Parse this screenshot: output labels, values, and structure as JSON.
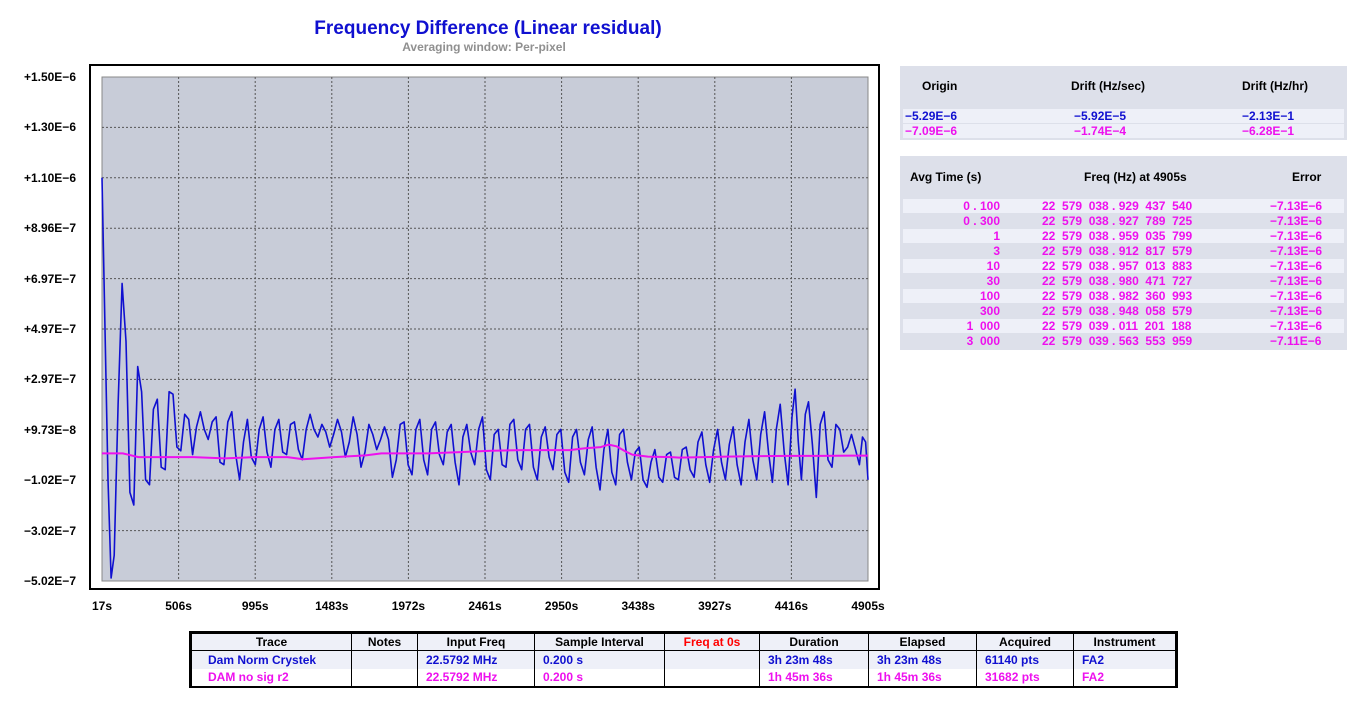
{
  "chart_data": {
    "type": "line",
    "title": "Frequency Difference (Linear residual)",
    "subtitle": "Averaging window: Per-pixel",
    "xlabel": "",
    "ylabel": "",
    "x_ticks": [
      "17s",
      "506s",
      "995s",
      "1483s",
      "1972s",
      "2461s",
      "2950s",
      "3438s",
      "3927s",
      "4416s",
      "4905s"
    ],
    "y_ticks": [
      "+1.50E−6",
      "+1.30E−6",
      "+1.10E−6",
      "+8.96E−7",
      "+6.97E−7",
      "+4.97E−7",
      "+2.97E−7",
      "+9.73E−8",
      "−1.02E−7",
      "−3.02E−7",
      "−5.02E−7"
    ],
    "xlim": [
      17,
      4905
    ],
    "ylim": [
      -5.02e-07,
      1.5e-06
    ],
    "grid": true,
    "series": [
      {
        "name": "Dam Norm Crystek",
        "color": "#1010d0",
        "points": [
          [
            17,
            1.1e-06
          ],
          [
            55,
            -1e-07
          ],
          [
            75,
            -4.9e-07
          ],
          [
            95,
            -4e-07
          ],
          [
            120,
            2e-07
          ],
          [
            145,
            6.8e-07
          ],
          [
            170,
            4.5e-07
          ],
          [
            195,
            -1.5e-07
          ],
          [
            220,
            -2e-07
          ],
          [
            245,
            3.5e-07
          ],
          [
            270,
            2.5e-07
          ],
          [
            295,
            -1e-07
          ],
          [
            320,
            -1.2e-07
          ],
          [
            345,
            1.8e-07
          ],
          [
            370,
            2.2e-07
          ],
          [
            395,
            -5e-08
          ],
          [
            420,
            -6e-08
          ],
          [
            445,
            2.5e-07
          ],
          [
            470,
            2.4e-07
          ],
          [
            495,
            3e-08
          ],
          [
            520,
            1.5e-08
          ],
          [
            545,
            1.6e-07
          ],
          [
            570,
            1.4e-07
          ],
          [
            595,
            0
          ],
          [
            620,
            1.1e-07
          ],
          [
            645,
            1.7e-07
          ],
          [
            670,
            1e-07
          ],
          [
            695,
            6e-08
          ],
          [
            720,
            1.3e-07
          ],
          [
            745,
            1.5e-07
          ],
          [
            770,
            -3e-08
          ],
          [
            795,
            -4e-08
          ],
          [
            820,
            1.3e-07
          ],
          [
            845,
            1.7e-07
          ],
          [
            870,
            0
          ],
          [
            895,
            -1e-07
          ],
          [
            920,
            5e-08
          ],
          [
            945,
            1.4e-07
          ],
          [
            970,
            -1e-08
          ],
          [
            995,
            -4e-08
          ],
          [
            1020,
            1e-07
          ],
          [
            1045,
            1.5e-07
          ],
          [
            1070,
            1e-08
          ],
          [
            1095,
            -5e-08
          ],
          [
            1120,
            1e-07
          ],
          [
            1145,
            1.4e-07
          ],
          [
            1170,
            1e-08
          ],
          [
            1195,
            0
          ],
          [
            1220,
            1.2e-07
          ],
          [
            1245,
            1.3e-07
          ],
          [
            1270,
            2e-08
          ],
          [
            1295,
            -2e-08
          ],
          [
            1320,
            1e-07
          ],
          [
            1345,
            1.6e-07
          ],
          [
            1370,
            1e-07
          ],
          [
            1395,
            7e-08
          ],
          [
            1420,
            1.2e-07
          ],
          [
            1445,
            9e-08
          ],
          [
            1470,
            3e-08
          ],
          [
            1495,
            8e-08
          ],
          [
            1520,
            1.4e-07
          ],
          [
            1545,
            9e-08
          ],
          [
            1570,
            -1e-08
          ],
          [
            1595,
            5e-08
          ],
          [
            1620,
            1.5e-07
          ],
          [
            1645,
            8e-08
          ],
          [
            1670,
            -5e-08
          ],
          [
            1695,
            1e-08
          ],
          [
            1720,
            1.2e-07
          ],
          [
            1745,
            8e-08
          ],
          [
            1770,
            2e-08
          ],
          [
            1795,
            6e-08
          ],
          [
            1820,
            1.1e-07
          ],
          [
            1845,
            6e-08
          ],
          [
            1870,
            -9e-08
          ],
          [
            1895,
            -2e-08
          ],
          [
            1920,
            1.2e-07
          ],
          [
            1945,
            1.3e-07
          ],
          [
            1970,
            -4e-08
          ],
          [
            1995,
            -8e-08
          ],
          [
            2020,
            1e-07
          ],
          [
            2045,
            1.4e-07
          ],
          [
            2070,
            -2e-08
          ],
          [
            2095,
            -8e-08
          ],
          [
            2120,
            1e-07
          ],
          [
            2145,
            1.3e-07
          ],
          [
            2170,
            0
          ],
          [
            2195,
            -4e-08
          ],
          [
            2220,
            9e-08
          ],
          [
            2245,
            1.2e-07
          ],
          [
            2270,
            -3e-08
          ],
          [
            2295,
            -1.2e-07
          ],
          [
            2320,
            7e-08
          ],
          [
            2345,
            1.2e-07
          ],
          [
            2370,
            1e-08
          ],
          [
            2395,
            -4e-08
          ],
          [
            2420,
            1e-07
          ],
          [
            2445,
            1.5e-07
          ],
          [
            2470,
            -6e-08
          ],
          [
            2495,
            -1e-07
          ],
          [
            2520,
            8e-08
          ],
          [
            2545,
            1e-07
          ],
          [
            2570,
            -4e-08
          ],
          [
            2595,
            -5e-08
          ],
          [
            2620,
            1.2e-07
          ],
          [
            2645,
            1.4e-07
          ],
          [
            2670,
            -2e-08
          ],
          [
            2695,
            -6e-08
          ],
          [
            2720,
            1e-07
          ],
          [
            2745,
            1.2e-07
          ],
          [
            2770,
            -5e-08
          ],
          [
            2795,
            -1e-07
          ],
          [
            2820,
            7e-08
          ],
          [
            2845,
            1.1e-07
          ],
          [
            2870,
            -1e-08
          ],
          [
            2895,
            -6e-08
          ],
          [
            2920,
            8e-08
          ],
          [
            2945,
            1e-07
          ],
          [
            2970,
            -7e-08
          ],
          [
            2995,
            -1.1e-07
          ],
          [
            3020,
            7e-08
          ],
          [
            3045,
            1e-07
          ],
          [
            3070,
            -3e-08
          ],
          [
            3095,
            -8e-08
          ],
          [
            3120,
            6e-08
          ],
          [
            3145,
            1.1e-07
          ],
          [
            3170,
            -5e-08
          ],
          [
            3195,
            -1.4e-07
          ],
          [
            3220,
            2e-08
          ],
          [
            3245,
            1e-07
          ],
          [
            3270,
            -7e-08
          ],
          [
            3295,
            -1.2e-07
          ],
          [
            3320,
            8e-08
          ],
          [
            3345,
            1e-07
          ],
          [
            3370,
            -3e-08
          ],
          [
            3395,
            -1e-07
          ],
          [
            3420,
            1e-08
          ],
          [
            3445,
            3e-08
          ],
          [
            3470,
            -1e-07
          ],
          [
            3495,
            -1.3e-07
          ],
          [
            3520,
            -3e-08
          ],
          [
            3545,
            2e-08
          ],
          [
            3570,
            -9e-08
          ],
          [
            3595,
            -1.1e-07
          ],
          [
            3620,
            0
          ],
          [
            3645,
            1e-08
          ],
          [
            3670,
            -9e-08
          ],
          [
            3695,
            -1e-07
          ],
          [
            3720,
            2e-08
          ],
          [
            3745,
            3e-08
          ],
          [
            3770,
            -6e-08
          ],
          [
            3795,
            -9e-08
          ],
          [
            3820,
            5e-08
          ],
          [
            3845,
            9e-08
          ],
          [
            3870,
            -4e-08
          ],
          [
            3895,
            -1.1e-07
          ],
          [
            3920,
            2e-08
          ],
          [
            3945,
            1e-07
          ],
          [
            3970,
            -3e-08
          ],
          [
            3995,
            -1e-07
          ],
          [
            4020,
            4e-08
          ],
          [
            4045,
            1.1e-07
          ],
          [
            4070,
            -4e-08
          ],
          [
            4095,
            -1.2e-07
          ],
          [
            4120,
            5e-08
          ],
          [
            4145,
            1.4e-07
          ],
          [
            4170,
            -2e-08
          ],
          [
            4195,
            -1e-07
          ],
          [
            4220,
            8e-08
          ],
          [
            4245,
            1.7e-07
          ],
          [
            4270,
            1e-08
          ],
          [
            4295,
            -1.1e-07
          ],
          [
            4320,
            1e-07
          ],
          [
            4345,
            2e-07
          ],
          [
            4370,
            1e-08
          ],
          [
            4395,
            -1.2e-07
          ],
          [
            4420,
            1.5e-07
          ],
          [
            4440,
            2.6e-07
          ],
          [
            4460,
            5e-08
          ],
          [
            4480,
            -1e-07
          ],
          [
            4505,
            1.6e-07
          ],
          [
            4525,
            2.1e-07
          ],
          [
            4550,
            4e-08
          ],
          [
            4575,
            -1.7e-07
          ],
          [
            4600,
            1.2e-07
          ],
          [
            4625,
            1.7e-07
          ],
          [
            4650,
            -2e-08
          ],
          [
            4675,
            -5e-08
          ],
          [
            4700,
            1.2e-07
          ],
          [
            4725,
            1e-07
          ],
          [
            4750,
            1e-08
          ],
          [
            4775,
            3e-08
          ],
          [
            4800,
            8e-08
          ],
          [
            4825,
            2e-08
          ],
          [
            4850,
            -4e-08
          ],
          [
            4870,
            7e-08
          ],
          [
            4890,
            5e-08
          ],
          [
            4905,
            -1e-07
          ]
        ]
      },
      {
        "name": "DAM no sig r2",
        "color": "#ee10ee",
        "points": [
          [
            17,
            5e-09
          ],
          [
            150,
            5e-09
          ],
          [
            250,
            -1e-08
          ],
          [
            400,
            -1e-08
          ],
          [
            600,
            -1e-08
          ],
          [
            800,
            -1.5e-08
          ],
          [
            1000,
            -1e-08
          ],
          [
            1200,
            -1e-08
          ],
          [
            1300,
            -1.8e-08
          ],
          [
            1500,
            -1e-08
          ],
          [
            1700,
            -3e-09
          ],
          [
            1800,
            5e-09
          ],
          [
            1900,
            5e-09
          ],
          [
            2100,
            5e-09
          ],
          [
            2300,
            1e-08
          ],
          [
            2500,
            1.5e-08
          ],
          [
            2700,
            1.8e-08
          ],
          [
            2900,
            1.8e-08
          ],
          [
            3000,
            1.8e-08
          ],
          [
            3100,
            2.5e-08
          ],
          [
            3200,
            3e-08
          ],
          [
            3250,
            4e-08
          ],
          [
            3300,
            3.3e-08
          ],
          [
            3350,
            1.5e-08
          ],
          [
            3400,
            0
          ],
          [
            3500,
            -8e-09
          ],
          [
            3650,
            -1e-08
          ],
          [
            3700,
            -1.2e-08
          ],
          [
            3850,
            -1e-08
          ],
          [
            4000,
            -8e-09
          ],
          [
            4200,
            -6e-09
          ],
          [
            4400,
            -5e-09
          ],
          [
            4600,
            -5e-09
          ],
          [
            4800,
            -4e-09
          ],
          [
            4905,
            -4e-09
          ]
        ]
      }
    ]
  },
  "drift_panel": {
    "headers": [
      "Origin",
      "Drift (Hz/sec)",
      "Drift (Hz/hr)"
    ],
    "rows": [
      {
        "origin": "−5.29E−6",
        "drift_sec": "−5.92E−5",
        "drift_hr": "−2.13E−1",
        "color": "#1010d0"
      },
      {
        "origin": "−7.09E−6",
        "drift_sec": "−1.74E−4",
        "drift_hr": "−6.28E−1",
        "color": "#ee10ee"
      }
    ]
  },
  "avg_panel": {
    "headers": [
      "Avg Time (s)",
      "Freq (Hz) at 4905s",
      "Error"
    ],
    "color": "#ee10ee",
    "rows": [
      {
        "avg": "0 . 100",
        "freq": "22  579  038 . 929  437  540",
        "err": "−7.13E−6"
      },
      {
        "avg": "0 . 300",
        "freq": "22  579  038 . 927  789  725",
        "err": "−7.13E−6"
      },
      {
        "avg": "1",
        "freq": "22  579  038 . 959  035  799",
        "err": "−7.13E−6"
      },
      {
        "avg": "3",
        "freq": "22  579  038 . 912  817  579",
        "err": "−7.13E−6"
      },
      {
        "avg": "10",
        "freq": "22  579  038 . 957  013  883",
        "err": "−7.13E−6"
      },
      {
        "avg": "30",
        "freq": "22  579  038 . 980  471  727",
        "err": "−7.13E−6"
      },
      {
        "avg": "100",
        "freq": "22  579  038 . 982  360  993",
        "err": "−7.13E−6"
      },
      {
        "avg": "300",
        "freq": "22  579  038 . 948  058  579",
        "err": "−7.13E−6"
      },
      {
        "avg": "1  000",
        "freq": "22  579  039 . 011  201  188",
        "err": "−7.13E−6"
      },
      {
        "avg": "3  000",
        "freq": "22  579  039 . 563  553  959",
        "err": "−7.11E−6"
      }
    ]
  },
  "info_table": {
    "headers": [
      "Trace",
      "Notes",
      "Input Freq",
      "Sample Interval",
      "Freq at 0s",
      "Duration",
      "Elapsed",
      "Acquired",
      "Instrument"
    ],
    "freq_at_0s_header_color": "#ff0000",
    "rows": [
      {
        "trace": "Dam Norm Crystek",
        "notes": "",
        "input_freq": "22.5792 MHz",
        "sample_interval": "0.200 s",
        "freq_at_0s": "",
        "duration": "3h 23m 48s",
        "elapsed": "3h 23m 48s",
        "acquired": "61140 pts",
        "instrument": "FA2",
        "color": "#1010d0"
      },
      {
        "trace": "DAM no sig r2",
        "notes": "",
        "input_freq": "22.5792 MHz",
        "sample_interval": "0.200 s",
        "freq_at_0s": "",
        "duration": "1h 45m 36s",
        "elapsed": "1h 45m 36s",
        "acquired": "31682 pts",
        "instrument": "FA2",
        "color": "#ee10ee"
      }
    ]
  }
}
